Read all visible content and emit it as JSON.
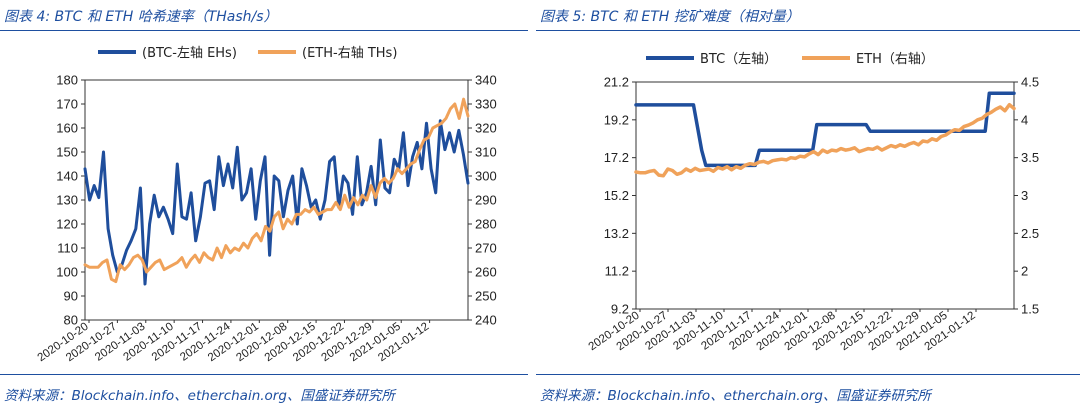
{
  "left": {
    "title": "图表 4: BTC 和 ETH 哈希速率（THash/s）",
    "source": "资料来源：Blockchain.info、etherchain.org、国盛证券研究所"
  },
  "right": {
    "title": "图表 5: BTC 和 ETH 挖矿难度（相对量）",
    "source": "资料来源：Blockchain.info、etherchain.org、国盛证券研究所"
  },
  "colors": {
    "btc": "#1f4e9c",
    "eth": "#f0a25a",
    "accent": "#1e4fa0"
  },
  "chart_data": [
    {
      "type": "line",
      "title": "",
      "x_tick_labels": [
        "2020-10-20",
        "2020-10-27",
        "2020-11-03",
        "2020-11-10",
        "2020-11-17",
        "2020-11-24",
        "2020-12-01",
        "2020-12-08",
        "2020-12-15",
        "2020-12-22",
        "2020-12-29",
        "2021-01-05",
        "2021-01-12"
      ],
      "left_axis": {
        "min": 80,
        "max": 180,
        "ticks": [
          "80",
          "90",
          "100",
          "110",
          "120",
          "130",
          "140",
          "150",
          "160",
          "170",
          "180"
        ]
      },
      "right_axis": {
        "min": 240,
        "max": 340,
        "ticks": [
          "240",
          "250",
          "260",
          "270",
          "280",
          "290",
          "300",
          "310",
          "320",
          "330",
          "340"
        ]
      },
      "grid": false,
      "legend_position": "top",
      "series": [
        {
          "name": "(BTC-左轴 EHs)",
          "axis": "left",
          "values": [
            143,
            130,
            136,
            131,
            150,
            118,
            107,
            100,
            103,
            109,
            113,
            118,
            135,
            95,
            120,
            132,
            123,
            127,
            122,
            116,
            145,
            123,
            122,
            133,
            113,
            123,
            137,
            138,
            126,
            148,
            136,
            145,
            135,
            152,
            130,
            133,
            143,
            122,
            138,
            148,
            107,
            140,
            138,
            123,
            134,
            140,
            120,
            143,
            136,
            127,
            130,
            122,
            130,
            146,
            148,
            127,
            140,
            137,
            124,
            148,
            128,
            133,
            144,
            128,
            155,
            135,
            133,
            147,
            143,
            158,
            136,
            148,
            154,
            143,
            162,
            143,
            133,
            163,
            151,
            158,
            150,
            159,
            149,
            137
          ]
        },
        {
          "name": "(ETH-右轴 THs)",
          "axis": "right",
          "values": [
            263,
            262,
            262,
            262,
            264,
            265,
            257,
            256,
            263,
            261,
            263,
            266,
            267,
            265,
            260,
            262,
            264,
            265,
            261,
            262,
            263,
            264,
            266,
            262,
            265,
            267,
            264,
            268,
            266,
            265,
            270,
            266,
            271,
            268,
            270,
            269,
            272,
            270,
            274,
            276,
            273,
            279,
            277,
            283,
            285,
            278,
            282,
            280,
            284,
            284,
            286,
            285,
            287,
            284,
            285,
            286,
            286,
            289,
            286,
            292,
            287,
            291,
            288,
            292,
            290,
            296,
            291,
            297,
            299,
            297,
            299,
            303,
            301,
            303,
            305,
            306,
            311,
            315,
            316,
            320,
            321,
            322,
            324,
            328,
            330,
            324,
            332,
            325
          ]
        }
      ]
    },
    {
      "type": "line",
      "title": "",
      "x_tick_labels": [
        "2020-10-20",
        "2020-10-27",
        "2020-11-03",
        "2020-11-10",
        "2020-11-17",
        "2020-11-24",
        "2020-12-01",
        "2020-12-08",
        "2020-12-15",
        "2020-12-22",
        "2020-12-29",
        "2021-01-05",
        "2021-01-12"
      ],
      "left_axis": {
        "min": 9.2,
        "max": 21.2,
        "ticks": [
          "9.2",
          "11.2",
          "13.2",
          "15.2",
          "17.2",
          "19.2",
          "21.2"
        ]
      },
      "right_axis": {
        "min": 1.5,
        "max": 4.5,
        "ticks": [
          "1.5",
          "2",
          "2.5",
          "3",
          "3.5",
          "4",
          "4.5"
        ]
      },
      "grid": false,
      "legend_position": "top",
      "series": [
        {
          "name": "BTC（左轴）",
          "axis": "left",
          "step_points": [
            [
              "2020-10-20",
              19.99
            ],
            [
              "2020-11-03",
              19.99
            ],
            [
              "2020-11-05",
              17.59
            ],
            [
              "2020-11-06",
              16.79
            ],
            [
              "2020-11-18",
              16.79
            ],
            [
              "2020-11-19",
              17.59
            ],
            [
              "2020-12-02",
              17.59
            ],
            [
              "2020-12-03",
              18.95
            ],
            [
              "2020-12-15",
              18.95
            ],
            [
              "2020-12-16",
              18.6
            ],
            [
              "2020-12-30",
              18.6
            ],
            [
              "2020-12-31",
              18.6
            ],
            [
              "2021-01-13",
              18.6
            ],
            [
              "2021-01-14",
              20.61
            ],
            [
              "2021-01-20",
              20.61
            ]
          ]
        },
        {
          "name": "ETH（右轴）",
          "axis": "right",
          "values": [
            3.31,
            3.3,
            3.3,
            3.32,
            3.33,
            3.27,
            3.26,
            3.35,
            3.33,
            3.28,
            3.3,
            3.35,
            3.32,
            3.36,
            3.33,
            3.34,
            3.35,
            3.32,
            3.37,
            3.35,
            3.38,
            3.34,
            3.38,
            3.36,
            3.4,
            3.42,
            3.41,
            3.44,
            3.45,
            3.43,
            3.46,
            3.47,
            3.48,
            3.47,
            3.5,
            3.49,
            3.52,
            3.51,
            3.55,
            3.58,
            3.54,
            3.6,
            3.57,
            3.6,
            3.59,
            3.62,
            3.6,
            3.61,
            3.63,
            3.58,
            3.6,
            3.62,
            3.61,
            3.64,
            3.6,
            3.63,
            3.66,
            3.64,
            3.67,
            3.65,
            3.68,
            3.7,
            3.67,
            3.72,
            3.71,
            3.75,
            3.73,
            3.78,
            3.8,
            3.84,
            3.87,
            3.86,
            3.91,
            3.93,
            3.96,
            4,
            4.02,
            4.07,
            4.1,
            4.14,
            4.17,
            4.12,
            4.2,
            4.15
          ]
        }
      ]
    }
  ]
}
